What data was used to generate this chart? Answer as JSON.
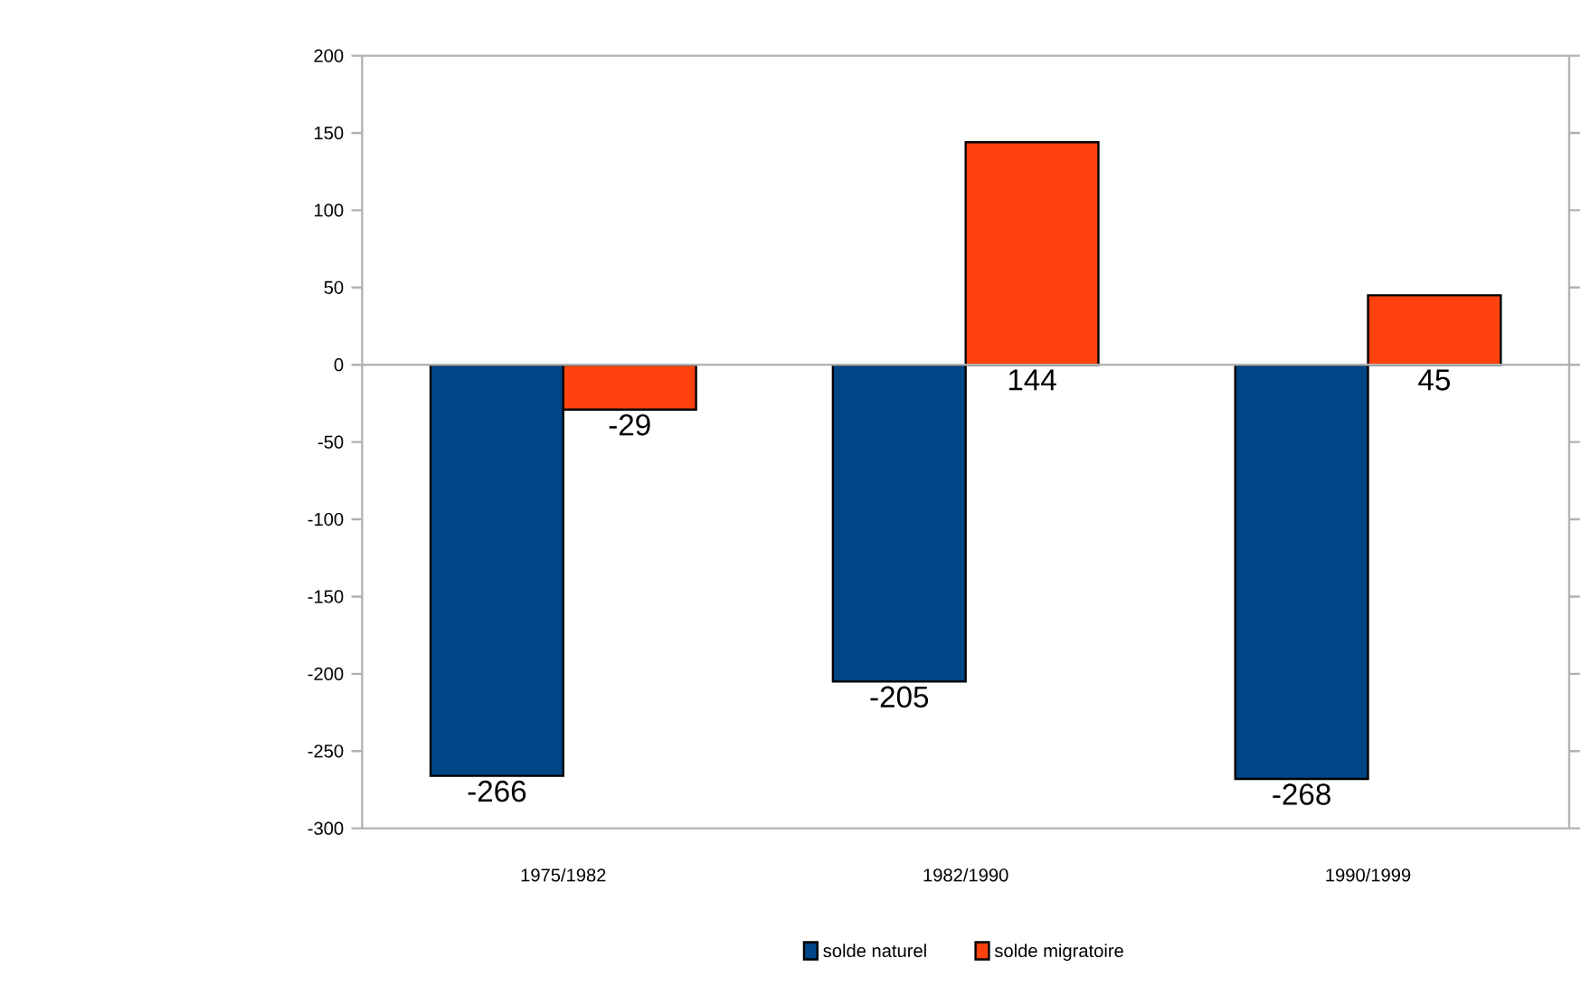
{
  "chart_data": {
    "type": "bar",
    "categories": [
      "1975/1982",
      "1982/1990",
      "1990/1999"
    ],
    "series": [
      {
        "name": "solde naturel",
        "color": "#004586",
        "values": [
          -266,
          -205,
          -268
        ],
        "value_labels": [
          "-266",
          "-205",
          "-268"
        ]
      },
      {
        "name": "solde migratoire",
        "color": "#ff420e",
        "values": [
          -29,
          144,
          45
        ],
        "value_labels": [
          "-29",
          "144",
          "45"
        ]
      }
    ],
    "ylim": [
      -300,
      200
    ],
    "yticks": [
      -300,
      -250,
      -200,
      -150,
      -100,
      -50,
      0,
      50,
      100,
      150,
      200
    ],
    "legend": "bottom"
  }
}
